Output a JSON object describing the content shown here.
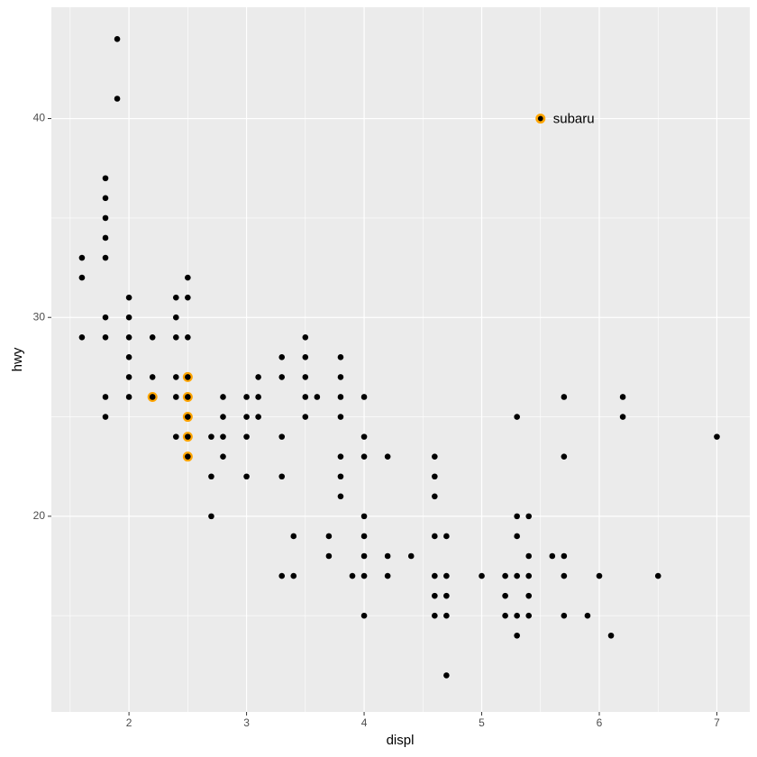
{
  "chart_data": {
    "type": "scatter",
    "xlabel": "displ",
    "ylabel": "hwy",
    "xlim": [
      1.34,
      7.28
    ],
    "ylim": [
      10.16,
      45.6
    ],
    "xticks": [
      2,
      3,
      4,
      5,
      6,
      7
    ],
    "yticks": [
      20,
      30,
      40
    ],
    "xminorticks": [
      1.5,
      2.5,
      3.5,
      4.5,
      5.5,
      6.5
    ],
    "yminorticks": [
      15,
      25,
      35
    ],
    "grid": true,
    "color": "#000000",
    "x": [
      1.6,
      1.6,
      1.6,
      1.8,
      1.8,
      1.8,
      1.8,
      1.8,
      1.8,
      1.8,
      1.8,
      1.8,
      1.9,
      1.9,
      2.0,
      2.0,
      2.0,
      2.0,
      2.0,
      2.0,
      2.2,
      2.2,
      2.2,
      2.4,
      2.4,
      2.4,
      2.4,
      2.4,
      2.4,
      2.5,
      2.5,
      2.5,
      2.5,
      2.5,
      2.5,
      2.5,
      2.5,
      2.7,
      2.7,
      2.7,
      2.8,
      2.8,
      2.8,
      2.8,
      3.0,
      3.0,
      3.0,
      3.0,
      3.1,
      3.1,
      3.1,
      3.3,
      3.3,
      3.3,
      3.3,
      3.3,
      3.4,
      3.4,
      3.5,
      3.5,
      3.5,
      3.5,
      3.5,
      3.6,
      3.7,
      3.7,
      3.8,
      3.8,
      3.8,
      3.8,
      3.8,
      3.8,
      3.8,
      3.9,
      4.0,
      4.0,
      4.0,
      4.0,
      4.0,
      4.0,
      4.0,
      4.0,
      4.2,
      4.2,
      4.2,
      4.4,
      4.6,
      4.6,
      4.6,
      4.6,
      4.6,
      4.6,
      4.6,
      4.7,
      4.7,
      4.7,
      4.7,
      4.7,
      5.0,
      5.2,
      5.2,
      5.2,
      5.3,
      5.3,
      5.3,
      5.3,
      5.3,
      5.3,
      5.4,
      5.4,
      5.4,
      5.4,
      5.4,
      5.6,
      5.7,
      5.7,
      5.7,
      5.7,
      5.7,
      5.9,
      6.0,
      6.1,
      6.2,
      6.2,
      6.5,
      7.0
    ],
    "y": [
      33,
      32,
      29,
      37,
      36,
      35,
      34,
      33,
      30,
      29,
      26,
      25,
      44,
      41,
      31,
      30,
      29,
      28,
      27,
      26,
      29,
      27,
      26,
      31,
      30,
      29,
      27,
      26,
      24,
      32,
      31,
      29,
      27,
      26,
      25,
      24,
      23,
      24,
      22,
      20,
      26,
      25,
      24,
      23,
      26,
      25,
      24,
      22,
      27,
      26,
      25,
      28,
      27,
      24,
      22,
      17,
      19,
      17,
      29,
      28,
      27,
      26,
      25,
      26,
      19,
      18,
      28,
      27,
      26,
      25,
      23,
      22,
      21,
      17,
      26,
      24,
      23,
      20,
      19,
      18,
      17,
      15,
      23,
      18,
      17,
      18,
      23,
      22,
      21,
      19,
      17,
      16,
      15,
      19,
      17,
      16,
      15,
      12,
      17,
      17,
      16,
      15,
      25,
      20,
      19,
      17,
      15,
      14,
      20,
      18,
      17,
      16,
      15,
      18,
      26,
      23,
      18,
      17,
      15,
      15,
      17,
      14,
      26,
      25,
      17,
      24
    ],
    "highlight": {
      "color": "#FFA500",
      "x": [
        2.2,
        2.5,
        2.5,
        2.5,
        2.5,
        2.5,
        5.5
      ],
      "y": [
        26,
        27,
        26,
        25,
        24,
        23,
        40
      ]
    },
    "annotation": {
      "text": "subaru",
      "x": 5.5,
      "y": 40
    }
  }
}
